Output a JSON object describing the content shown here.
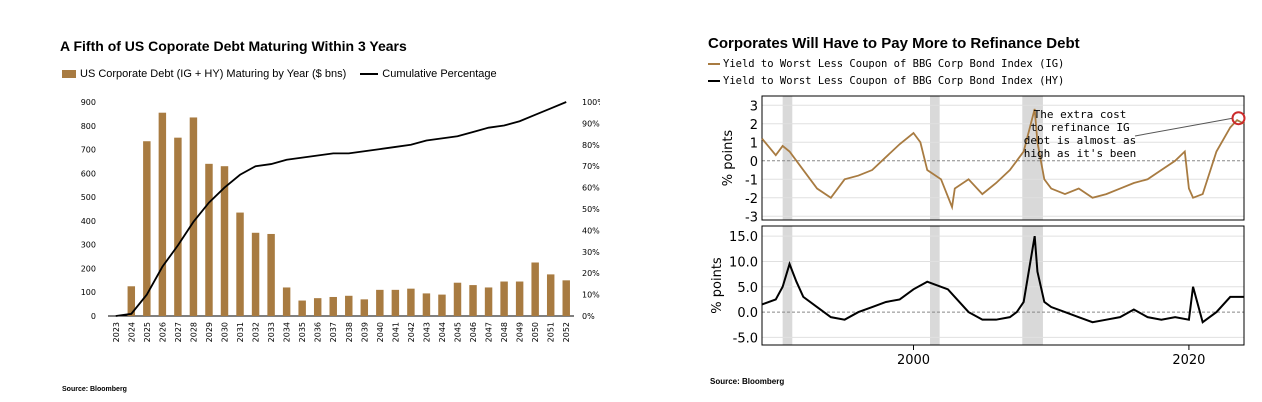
{
  "left_chart": {
    "title": "A Fifth of US Coporate Debt Maturing Within 3 Years",
    "source": "Source: Bloomberg",
    "legend": {
      "bars": "US Corporate Debt (IG + HY) Maturing by Year ($ bns)",
      "line": "Cumulative Percentage"
    },
    "colors": {
      "bar": "#a87b41",
      "line": "#000000"
    }
  },
  "right_chart": {
    "title": "Corporates Will Have to Pay More to Refinance Debt",
    "source": "Source: Bloomberg",
    "legend": {
      "ig": "Yield to Worst Less Coupon of BBG Corp Bond Index (IG)",
      "hy": "Yield to Worst Less Coupon of BBG Corp Bond Index (HY)"
    },
    "annotation": [
      "The extra cost",
      "to refinance IG",
      "debt is almost as",
      "high as it's been"
    ],
    "colors": {
      "ig": "#a87b41",
      "hy": "#000000",
      "recession": "#d9d9d9",
      "highlight": "#cc2b2b"
    }
  },
  "chart_data": [
    {
      "type": "bar",
      "title": "A Fifth of US Coporate Debt Maturing Within 3 Years",
      "categories": [
        "2023",
        "2024",
        "2025",
        "2026",
        "2027",
        "2028",
        "2029",
        "2030",
        "2031",
        "2032",
        "2033",
        "2034",
        "2035",
        "2036",
        "2037",
        "2038",
        "2039",
        "2040",
        "2041",
        "2042",
        "2043",
        "2044",
        "2045",
        "2046",
        "2047",
        "2048",
        "2049",
        "2050",
        "2051",
        "2052"
      ],
      "series": [
        {
          "name": "US Corporate Debt (IG + HY) Maturing by Year ($ bns)",
          "axis": "left",
          "values": [
            0,
            125,
            735,
            855,
            750,
            835,
            640,
            630,
            435,
            350,
            345,
            120,
            65,
            75,
            80,
            85,
            70,
            110,
            110,
            115,
            95,
            90,
            140,
            130,
            120,
            145,
            145,
            225,
            175,
            150
          ]
        },
        {
          "name": "Cumulative Percentage",
          "axis": "right",
          "type": "line",
          "values": [
            0,
            1,
            10,
            23,
            33,
            44,
            53,
            60,
            66,
            70,
            71,
            73,
            74,
            75,
            76,
            76,
            77,
            78,
            79,
            80,
            82,
            83,
            84,
            86,
            88,
            89,
            91,
            94,
            97,
            100
          ]
        }
      ],
      "ylim": [
        0,
        900
      ],
      "y_ticks": [
        "0",
        "100",
        "200",
        "300",
        "400",
        "500",
        "600",
        "700",
        "800",
        "900"
      ],
      "y2lim": [
        0,
        100
      ],
      "y2_ticks": [
        "0%",
        "10%",
        "20%",
        "30%",
        "40%",
        "50%",
        "60%",
        "70%",
        "80%",
        "90%",
        "100%"
      ],
      "legend_position": "top-left",
      "grid": false
    },
    {
      "type": "line",
      "title": "Corporates Will Have to Pay More to Refinance Debt",
      "x_range": [
        1989,
        2024
      ],
      "x_ticks": [
        "2000",
        "2020"
      ],
      "shaded_periods": [
        [
          1990.5,
          1991.2
        ],
        [
          2001.2,
          2001.9
        ],
        [
          2007.9,
          2009.4
        ]
      ],
      "panels": [
        {
          "ylabel": "% points",
          "ylim": [
            -3.2,
            3.5
          ],
          "y_ticks": [
            "3",
            "2",
            "1",
            "0",
            "-1",
            "-2",
            "-3"
          ],
          "series": [
            {
              "name": "Yield to Worst Less Coupon of BBG Corp Bond Index (IG)",
              "x": [
                1989,
                1990,
                1990.5,
                1991,
                1992,
                1993,
                1994,
                1995,
                1996,
                1997,
                1998,
                1999,
                2000,
                2000.5,
                2001,
                2002,
                2002.8,
                2003,
                2004,
                2005,
                2006,
                2007,
                2008,
                2008.8,
                2009,
                2009.5,
                2010,
                2011,
                2012,
                2013,
                2014,
                2015,
                2016,
                2017,
                2018,
                2019,
                2019.7,
                2020,
                2020.3,
                2021,
                2022,
                2023,
                2023.5,
                2024
              ],
              "y": [
                1.2,
                0.3,
                0.8,
                0.5,
                -0.5,
                -1.5,
                -2.0,
                -1.0,
                -0.8,
                -0.5,
                0.2,
                0.9,
                1.5,
                1.0,
                -0.5,
                -1.0,
                -2.5,
                -1.5,
                -1.0,
                -1.8,
                -1.2,
                -0.5,
                0.5,
                2.8,
                1.0,
                -1.0,
                -1.5,
                -1.8,
                -1.5,
                -2.0,
                -1.8,
                -1.5,
                -1.2,
                -1.0,
                -0.5,
                0.0,
                0.5,
                -1.5,
                -2.0,
                -1.8,
                0.5,
                1.8,
                2.2,
                2.0
              ]
            }
          ]
        },
        {
          "ylabel": "% points",
          "ylim": [
            -6.5,
            17
          ],
          "y_ticks": [
            "15.0",
            "10.0",
            "5.0",
            "0.0",
            "-5.0"
          ],
          "series": [
            {
              "name": "Yield to Worst Less Coupon of BBG Corp Bond Index (HY)",
              "x": [
                1989,
                1990,
                1990.5,
                1991,
                1991.5,
                1992,
                1993,
                1994,
                1995,
                1996,
                1997,
                1998,
                1999,
                2000,
                2001,
                2002,
                2002.5,
                2003,
                2004,
                2005,
                2006,
                2007,
                2007.5,
                2008,
                2008.8,
                2009,
                2009.5,
                2010,
                2011,
                2012,
                2013,
                2014,
                2015,
                2016,
                2017,
                2018,
                2019,
                2020,
                2020.3,
                2021,
                2022,
                2023,
                2024
              ],
              "y": [
                1.5,
                2.5,
                5.0,
                9.5,
                6.0,
                3.0,
                1.0,
                -1.0,
                -1.5,
                0.0,
                1.0,
                2.0,
                2.5,
                4.5,
                6.0,
                5.0,
                4.5,
                3.0,
                0.0,
                -1.5,
                -1.5,
                -1.0,
                0.0,
                2.0,
                15.0,
                8.0,
                2.0,
                1.0,
                0.0,
                -1.0,
                -2.0,
                -1.5,
                -1.0,
                0.5,
                -1.0,
                -1.5,
                -1.0,
                -1.5,
                5.0,
                -2.0,
                0.0,
                3.0,
                3.0
              ]
            }
          ]
        }
      ]
    }
  ]
}
